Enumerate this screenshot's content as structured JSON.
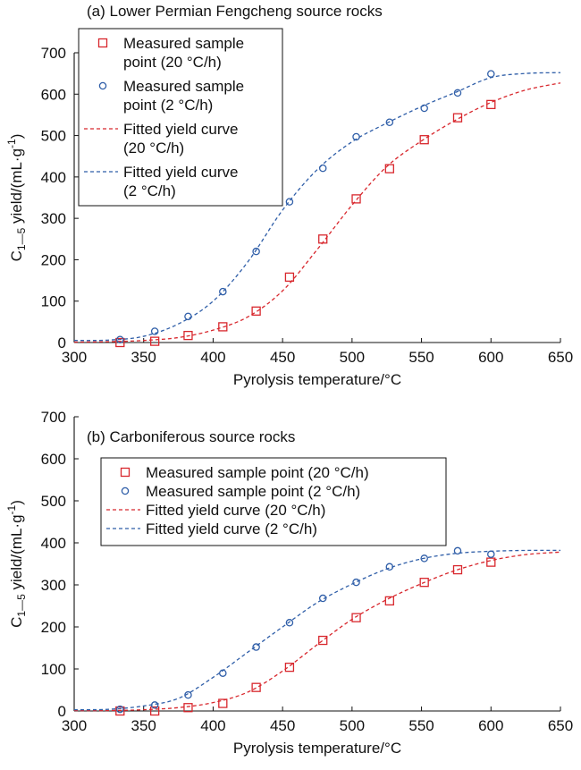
{
  "chart_data": [
    {
      "type": "scatter",
      "panel_title": "(a) Lower Permian Fengcheng source rocks",
      "xlabel": "Pyrolysis temperature/°C",
      "ylabel_main": "C",
      "ylabel_sub": "1—5",
      "ylabel_tail": " yield/(mL·g",
      "ylabel_sup": "-1",
      "ylabel_end": ")",
      "xlim": [
        300,
        650
      ],
      "ylim": [
        0,
        700
      ],
      "xticks": [
        "300",
        "350",
        "400",
        "450",
        "500",
        "550",
        "600",
        "650"
      ],
      "yticks": [
        "0",
        "100",
        "200",
        "300",
        "400",
        "500",
        "600",
        "700"
      ],
      "legend_position": "top-left",
      "grid": false,
      "series": [
        {
          "name_lines": [
            "Measured sample",
            "point (20 °C/h)"
          ],
          "kind": "points",
          "marker": "square",
          "color": "#d8272d",
          "x": [
            333,
            358,
            382,
            407,
            431,
            455,
            479,
            503,
            527,
            552,
            576,
            600
          ],
          "y": [
            0,
            3,
            17,
            38,
            76,
            158,
            250,
            347,
            420,
            490,
            543,
            575
          ]
        },
        {
          "name_lines": [
            "Measured sample",
            "point (2 °C/h)"
          ],
          "kind": "points",
          "marker": "circle",
          "color": "#2f5ea8",
          "x": [
            333,
            358,
            382,
            407,
            431,
            455,
            479,
            503,
            527,
            552,
            576,
            600
          ],
          "y": [
            7,
            27,
            63,
            123,
            220,
            340,
            421,
            497,
            532,
            566,
            603,
            649
          ]
        },
        {
          "name_lines": [
            "Fitted yield curve",
            "(20 °C/h)"
          ],
          "kind": "curve",
          "color": "#d8272d",
          "x": [
            300,
            325,
            350,
            375,
            400,
            425,
            450,
            475,
            500,
            525,
            550,
            575,
            600,
            625,
            650
          ],
          "y": [
            1,
            2,
            5,
            12,
            30,
            62,
            125,
            225,
            332,
            425,
            487,
            538,
            580,
            610,
            627
          ]
        },
        {
          "name_lines": [
            "Fitted yield curve",
            "(2 °C/h)"
          ],
          "kind": "curve",
          "color": "#2f5ea8",
          "x": [
            300,
            325,
            350,
            375,
            400,
            425,
            450,
            475,
            500,
            525,
            550,
            575,
            600,
            625,
            650
          ],
          "y": [
            5,
            6,
            15,
            45,
            100,
            195,
            320,
            418,
            485,
            530,
            570,
            605,
            640,
            650,
            652
          ]
        }
      ]
    },
    {
      "type": "scatter",
      "panel_title": "(b) Carboniferous source rocks",
      "xlabel": "Pyrolysis temperature/°C",
      "ylabel_main": "C",
      "ylabel_sub": "1—5",
      "ylabel_tail": " yield/(mL·g",
      "ylabel_sup": "-1",
      "ylabel_end": ")",
      "xlim": [
        300,
        650
      ],
      "ylim": [
        0,
        700
      ],
      "xticks": [
        "300",
        "350",
        "400",
        "450",
        "500",
        "550",
        "600",
        "650"
      ],
      "yticks": [
        "0",
        "100",
        "200",
        "300",
        "400",
        "500",
        "600",
        "700"
      ],
      "legend_position": "middle-right",
      "grid": false,
      "series": [
        {
          "name_lines": [
            "Measured sample point (20 °C/h)"
          ],
          "kind": "points",
          "marker": "square",
          "color": "#d8272d",
          "x": [
            333,
            358,
            382,
            407,
            431,
            455,
            479,
            503,
            527,
            552,
            576,
            600
          ],
          "y": [
            0,
            0,
            8,
            18,
            56,
            104,
            168,
            222,
            262,
            306,
            336,
            354
          ]
        },
        {
          "name_lines": [
            "Measured sample point (2 °C/h)"
          ],
          "kind": "points",
          "marker": "circle",
          "color": "#2f5ea8",
          "x": [
            333,
            358,
            382,
            407,
            431,
            455,
            479,
            503,
            527,
            552,
            576,
            600
          ],
          "y": [
            4,
            14,
            38,
            90,
            152,
            210,
            268,
            306,
            343,
            363,
            381,
            373
          ]
        },
        {
          "name_lines": [
            "Fitted yield curve (20 °C/h)"
          ],
          "kind": "curve",
          "color": "#d8272d",
          "x": [
            300,
            325,
            350,
            375,
            400,
            425,
            450,
            475,
            500,
            525,
            550,
            575,
            600,
            625,
            650
          ],
          "y": [
            1,
            1,
            3,
            8,
            20,
            45,
            95,
            158,
            218,
            265,
            303,
            335,
            358,
            372,
            378
          ]
        },
        {
          "name_lines": [
            "Fitted yield curve (2 °C/h)"
          ],
          "kind": "curve",
          "color": "#2f5ea8",
          "x": [
            300,
            325,
            350,
            375,
            400,
            425,
            450,
            475,
            500,
            525,
            550,
            575,
            600,
            625,
            650
          ],
          "y": [
            3,
            4,
            12,
            30,
            80,
            140,
            200,
            258,
            302,
            338,
            362,
            375,
            380,
            382,
            382
          ]
        }
      ]
    }
  ]
}
